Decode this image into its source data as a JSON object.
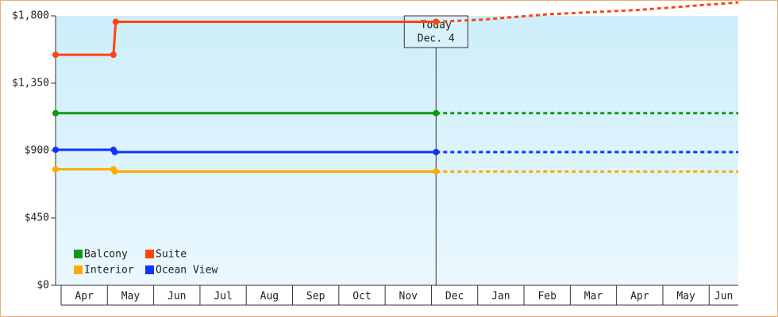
{
  "chart_data": {
    "type": "line",
    "xlim": [
      -0.12,
      14.63
    ],
    "xticks": [
      {
        "value": 0,
        "label": "Apr"
      },
      {
        "value": 1,
        "label": "May"
      },
      {
        "value": 2,
        "label": "Jun"
      },
      {
        "value": 3,
        "label": "Jul"
      },
      {
        "value": 4,
        "label": "Aug"
      },
      {
        "value": 5,
        "label": "Sep"
      },
      {
        "value": 6,
        "label": "Oct"
      },
      {
        "value": 7,
        "label": "Nov"
      },
      {
        "value": 8,
        "label": "Dec"
      },
      {
        "value": 9,
        "label": "Jan"
      },
      {
        "value": 10,
        "label": "Feb"
      },
      {
        "value": 11,
        "label": "Mar"
      },
      {
        "value": 12,
        "label": "Apr"
      },
      {
        "value": 13,
        "label": "May"
      },
      {
        "value": 14,
        "label": "Jun"
      }
    ],
    "ylim": [
      0,
      1800
    ],
    "yticks": [
      {
        "value": 0,
        "label": "$0"
      },
      {
        "value": 450,
        "label": "$450"
      },
      {
        "value": 900,
        "label": "$900"
      },
      {
        "value": 1350,
        "label": "$1,350"
      },
      {
        "value": 1800,
        "label": "$1,800"
      }
    ],
    "annotation": {
      "x": 8.1,
      "lines": [
        "Today",
        "Dec. 4"
      ]
    },
    "series": [
      {
        "name": "Balcony",
        "color": "#119911",
        "x": [
          -0.12,
          8.1
        ],
        "values": [
          1150,
          1150
        ],
        "forecast_x": [
          8.1,
          14.63
        ],
        "forecast_values": [
          1150,
          1150
        ]
      },
      {
        "name": "Suite",
        "color": "#ff4411",
        "x": [
          -0.12,
          1.13,
          1.18,
          8.1
        ],
        "values": [
          1540,
          1540,
          1760,
          1760
        ],
        "forecast_x": [
          8.1,
          9.1,
          10.5,
          12.5,
          14.63
        ],
        "forecast_values": [
          1760,
          1775,
          1810,
          1840,
          1890
        ]
      },
      {
        "name": "Interior",
        "color": "#ffaa00",
        "x": [
          -0.12,
          1.13,
          1.16,
          8.1
        ],
        "values": [
          775,
          775,
          760,
          760
        ],
        "forecast_x": [
          8.1,
          14.63
        ],
        "forecast_values": [
          760,
          760
        ]
      },
      {
        "name": "Ocean View",
        "color": "#1133ff",
        "x": [
          -0.12,
          1.13,
          1.16,
          8.1
        ],
        "values": [
          905,
          905,
          890,
          890
        ],
        "forecast_x": [
          8.1,
          14.63
        ],
        "forecast_values": [
          890,
          890
        ]
      }
    ]
  }
}
